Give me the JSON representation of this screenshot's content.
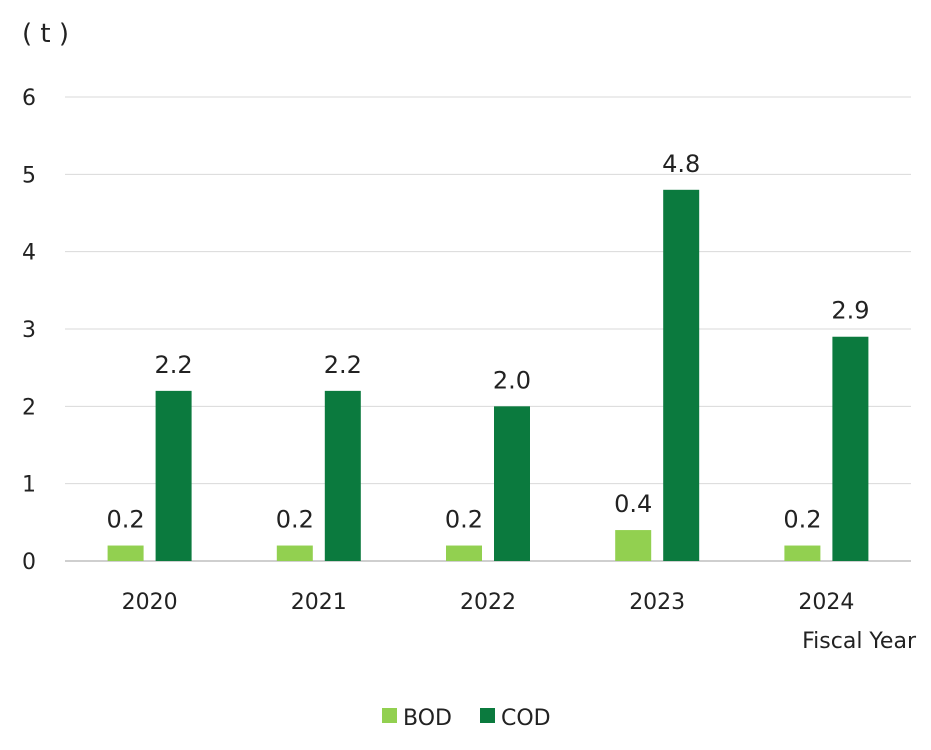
{
  "chart_data": {
    "type": "bar",
    "unit_label": "( t )",
    "xlabel": "Fiscal Year",
    "ylabel": "",
    "categories": [
      "2020",
      "2021",
      "2022",
      "2023",
      "2024"
    ],
    "series": [
      {
        "name": "BOD",
        "color": "#92d050",
        "values": [
          0.2,
          0.2,
          0.2,
          0.4,
          0.2
        ],
        "labels": [
          "0.2",
          "0.2",
          "0.2",
          "0.4",
          "0.2"
        ]
      },
      {
        "name": "COD",
        "color": "#0b7a3e",
        "values": [
          2.2,
          2.2,
          2.0,
          4.8,
          2.9
        ],
        "labels": [
          "2.2",
          "2.2",
          "2.0",
          "4.8",
          "2.9"
        ]
      }
    ],
    "ylim": [
      0,
      6
    ],
    "yticks": [
      "0",
      "1",
      "2",
      "3",
      "4",
      "5",
      "6"
    ],
    "grid": true,
    "legend_position": "bottom"
  }
}
